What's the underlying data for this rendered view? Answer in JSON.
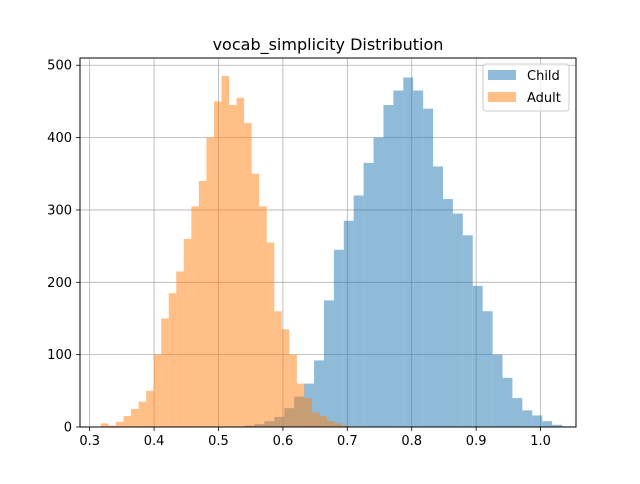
{
  "chart_data": {
    "type": "histogram",
    "title": "vocab_simplicity Distribution",
    "xlabel": "",
    "ylabel": "",
    "xlim": [
      0.285,
      1.055
    ],
    "ylim": [
      0,
      510
    ],
    "grid": true,
    "legend_position": "top-right",
    "x_ticks": [
      0.3,
      0.4,
      0.5,
      0.6,
      0.7,
      0.8,
      0.9,
      1.0
    ],
    "x_tick_labels": [
      "0.3",
      "0.4",
      "0.5",
      "0.6",
      "0.7",
      "0.8",
      "0.9",
      "1.0"
    ],
    "y_ticks": [
      0,
      100,
      200,
      300,
      400,
      500
    ],
    "y_tick_labels": [
      "0",
      "100",
      "200",
      "300",
      "400",
      "500"
    ],
    "series": [
      {
        "name": "Child",
        "color": "#1f77b4",
        "alpha": 0.5,
        "bin_start": 0.5405,
        "bin_width": 0.0154,
        "counts": [
          2,
          4,
          8,
          14,
          26,
          42,
          60,
          92,
          175,
          245,
          285,
          320,
          365,
          400,
          445,
          465,
          483,
          465,
          440,
          360,
          315,
          295,
          265,
          195,
          160,
          100,
          68,
          40,
          23,
          16,
          8,
          3,
          1
        ]
      },
      {
        "name": "Adult",
        "color": "#ff7f0e",
        "alpha": 0.5,
        "bin_start": 0.3175,
        "bin_width": 0.0117,
        "counts": [
          5,
          2,
          7,
          15,
          25,
          35,
          50,
          100,
          150,
          185,
          215,
          260,
          305,
          340,
          400,
          450,
          485,
          445,
          455,
          420,
          350,
          305,
          255,
          160,
          135,
          100,
          60,
          40,
          20,
          15,
          8,
          5,
          2
        ]
      }
    ]
  }
}
